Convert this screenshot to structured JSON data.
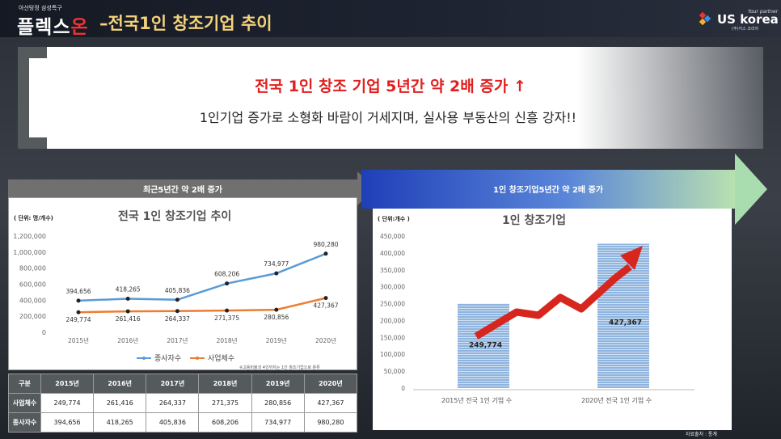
{
  "header": {
    "sub_brand": "아산탕정 삼성특구",
    "brand_main": "플렉스",
    "brand_accent": "온",
    "title": "–전국1인 창조기업 추이",
    "logo_tag": "Your partner",
    "logo_text": "US korea",
    "logo_sub": "(주)어스 코리아"
  },
  "headline": {
    "title": "전국 1인  창조 기업 5년간 약 2배 증가 ↑",
    "subtitle": "1인기업 증가로 소형화 바람이 거세지며, 실사용 부동산의 신흥 강자!!"
  },
  "left_band_label": "최근5년간 약 2배 증가",
  "right_band_label": "1인 창조기업5년간 약 2배 증가",
  "colors": {
    "employee_line": "#5b9bd5",
    "business_line": "#ed7d31",
    "bar": "#8fb4de",
    "arrow": "#d7261e",
    "headline": "#e02020"
  },
  "chart_data": [
    {
      "type": "line",
      "title": "전국 1인  창조기업 추이",
      "unit": "( 단위: 명/개수)",
      "categories": [
        "2015년",
        "2016년",
        "2017년",
        "2018년",
        "2019년",
        "2020년"
      ],
      "ylim": [
        0,
        1200000
      ],
      "yticks": [
        "0",
        "200,000",
        "400,000",
        "600,000",
        "800,000",
        "1,000,000",
        "1,200,000"
      ],
      "series": [
        {
          "name": "종사자수",
          "values": [
            394656,
            418265,
            405836,
            608206,
            734977,
            980280
          ],
          "labels": [
            "394,656",
            "418,265",
            "405,836",
            "608,206",
            "734,977",
            "980,280"
          ]
        },
        {
          "name": "사업체수",
          "values": [
            249774,
            261416,
            264337,
            271375,
            280856,
            427367
          ],
          "labels": [
            "249,774",
            "261,416",
            "264,337",
            "271,375",
            "280,856",
            "427,367"
          ]
        }
      ],
      "note": "※고용비율과 4인까지는 1인 창조기업으로 분류"
    },
    {
      "type": "bar",
      "title": "1인  창조기업",
      "unit": "( 단위:개수 )",
      "categories": [
        "2015년  전국 1인  기업 수",
        "2020년  전국 1인  기업 수"
      ],
      "values": [
        249774,
        427367
      ],
      "labels": [
        "249,774",
        "427,367"
      ],
      "yticks": [
        "0",
        "50,000",
        "100,000",
        "150,000",
        "200,000",
        "250,000",
        "300,000",
        "350,000",
        "400,000",
        "450,000"
      ],
      "ylim": [
        0,
        450000
      ]
    }
  ],
  "table": {
    "headers": [
      "구분",
      "2015년",
      "2016년",
      "2017년",
      "2018년",
      "2019년",
      "2020년"
    ],
    "rows": [
      {
        "label": "사업체수",
        "cells": [
          "249,774",
          "261,416",
          "264,337",
          "271,375",
          "280,856",
          "427,367"
        ]
      },
      {
        "label": "종사자수",
        "cells": [
          "394,656",
          "418,265",
          "405,836",
          "608,206",
          "734,977",
          "980,280"
        ]
      }
    ]
  },
  "source_note": "자료출처 : 통계"
}
